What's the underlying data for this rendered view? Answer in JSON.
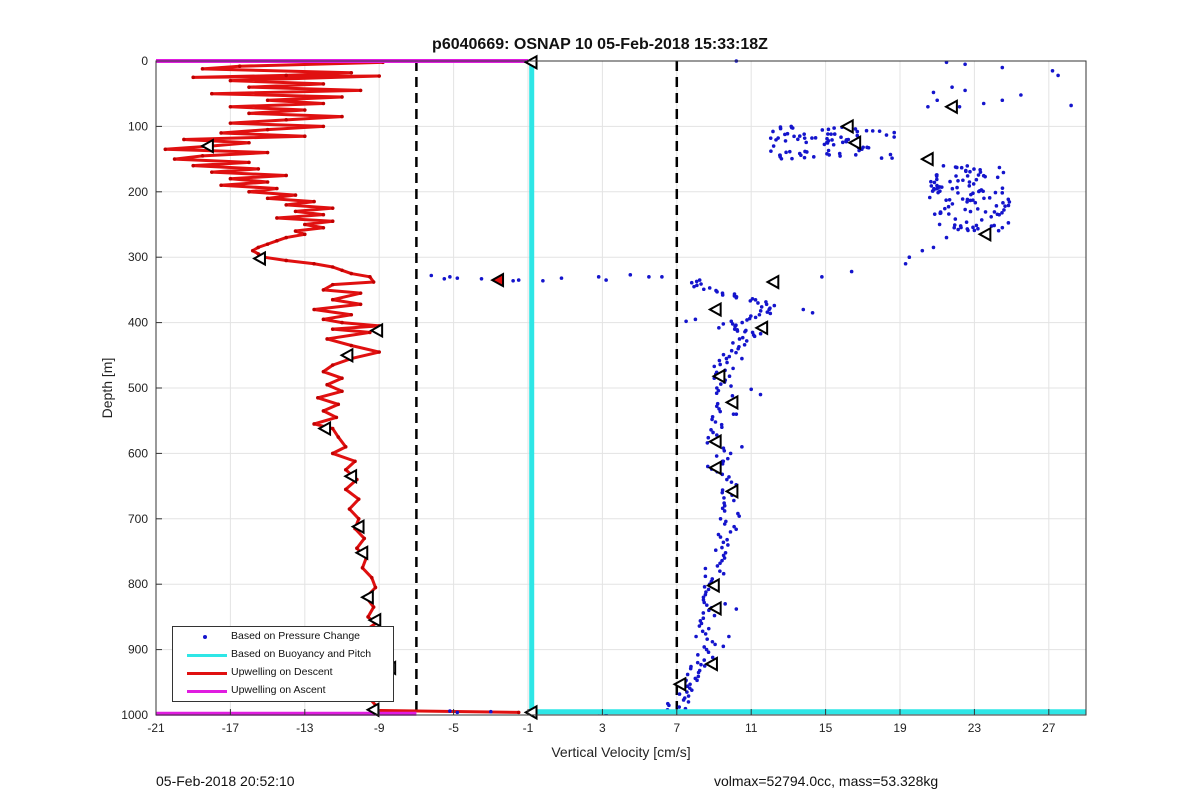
{
  "footer": {
    "timestamp": "05-Feb-2018 20:52:10",
    "info": "volmax=52794.0cc, mass=53.328kg"
  },
  "chart_data": {
    "type": "scatter",
    "title": "p6040669: OSNAP 10 05-Feb-2018 15:33:18Z",
    "xlabel": "Vertical Velocity [cm/s]",
    "ylabel": "Depth [m]",
    "xlim": [
      -21,
      29
    ],
    "ylim": [
      0,
      1000
    ],
    "y_reversed": true,
    "xticks": [
      -21,
      -17,
      -13,
      -9,
      -5,
      -1,
      3,
      7,
      11,
      15,
      19,
      23,
      27
    ],
    "yticks": [
      0,
      100,
      200,
      300,
      400,
      500,
      600,
      700,
      800,
      900,
      1000
    ],
    "grid": true,
    "legend_position": "bottom-left",
    "legend": [
      {
        "label": "Based on Pressure Change",
        "color": "#1414cc",
        "style": "dots"
      },
      {
        "label": "Based on Buoyancy and Pitch",
        "color": "#2ee6e6",
        "style": "line"
      },
      {
        "label": "Upwelling on Descent",
        "color": "#e01010",
        "style": "line"
      },
      {
        "label": "Upwelling on Ascent",
        "color": "#e01ce0",
        "style": "line"
      }
    ],
    "reference_lines": [
      {
        "x": -7,
        "style": "dashed",
        "color": "#000000"
      },
      {
        "x": 7,
        "style": "dashed",
        "color": "#000000"
      }
    ],
    "buoyancy_pitch_line": {
      "x": -0.8,
      "depth_range": [
        0,
        995
      ],
      "bottom_y": 995,
      "bottom_x_range": [
        -0.8,
        29
      ]
    },
    "ascent_line": {
      "top": {
        "y": 0,
        "x_range": [
          -21,
          -1
        ]
      },
      "bottom": {
        "y": 998,
        "x_range": [
          -21,
          -7
        ]
      }
    },
    "descent_profile": [
      [
        -8.8,
        2
      ],
      [
        -16.5,
        8
      ],
      [
        -18.5,
        12
      ],
      [
        -10.5,
        18
      ],
      [
        -14,
        22
      ],
      [
        -19,
        25
      ],
      [
        -9,
        23
      ],
      [
        -17,
        30
      ],
      [
        -12,
        35
      ],
      [
        -16,
        40
      ],
      [
        -10,
        45
      ],
      [
        -18,
        50
      ],
      [
        -11,
        55
      ],
      [
        -15,
        60
      ],
      [
        -12,
        65
      ],
      [
        -17,
        70
      ],
      [
        -13,
        75
      ],
      [
        -16,
        80
      ],
      [
        -11,
        85
      ],
      [
        -14,
        90
      ],
      [
        -17,
        95
      ],
      [
        -12,
        100
      ],
      [
        -15,
        105
      ],
      [
        -17.5,
        110
      ],
      [
        -13,
        115
      ],
      [
        -19.5,
        120
      ],
      [
        -16,
        125
      ],
      [
        -18,
        130
      ],
      [
        -20.5,
        135
      ],
      [
        -15,
        140
      ],
      [
        -18.5,
        145
      ],
      [
        -20,
        150
      ],
      [
        -16,
        155
      ],
      [
        -19,
        160
      ],
      [
        -15.5,
        165
      ],
      [
        -18,
        170
      ],
      [
        -14,
        175
      ],
      [
        -17,
        180
      ],
      [
        -15,
        185
      ],
      [
        -17.5,
        190
      ],
      [
        -14.5,
        195
      ],
      [
        -16,
        200
      ],
      [
        -13.5,
        205
      ],
      [
        -15,
        210
      ],
      [
        -12.5,
        215
      ],
      [
        -14,
        220
      ],
      [
        -11.5,
        225
      ],
      [
        -13.5,
        230
      ],
      [
        -12,
        235
      ],
      [
        -14.5,
        240
      ],
      [
        -11.5,
        245
      ],
      [
        -13,
        250
      ],
      [
        -12,
        255
      ],
      [
        -13.5,
        260
      ],
      [
        -13,
        265
      ],
      [
        -14,
        270
      ],
      [
        -14.5,
        275
      ],
      [
        -15,
        280
      ],
      [
        -15.5,
        285
      ],
      [
        -15.8,
        290
      ],
      [
        -15.5,
        295
      ],
      [
        -15.2,
        300
      ],
      [
        -14,
        305
      ],
      [
        -12.5,
        310
      ],
      [
        -11.5,
        315
      ],
      [
        -11,
        320
      ],
      [
        -10.5,
        325
      ],
      [
        -9.5,
        330
      ],
      [
        -9.3,
        338
      ],
      [
        -11.5,
        342
      ],
      [
        -12,
        350
      ],
      [
        -10,
        355
      ],
      [
        -11.5,
        365
      ],
      [
        -10,
        372
      ],
      [
        -12.5,
        380
      ],
      [
        -10.5,
        388
      ],
      [
        -12,
        395
      ],
      [
        -11,
        400
      ],
      [
        -9,
        405
      ],
      [
        -11.5,
        410
      ],
      [
        -9.5,
        415
      ],
      [
        -11.8,
        425
      ],
      [
        -10.5,
        435
      ],
      [
        -9,
        445
      ],
      [
        -10.5,
        455
      ],
      [
        -11.5,
        465
      ],
      [
        -12,
        475
      ],
      [
        -11,
        485
      ],
      [
        -11.8,
        495
      ],
      [
        -11,
        505
      ],
      [
        -12.3,
        515
      ],
      [
        -11.2,
        525
      ],
      [
        -12,
        535
      ],
      [
        -11.3,
        545
      ],
      [
        -12.5,
        555
      ],
      [
        -11.5,
        562
      ],
      [
        -11.2,
        575
      ],
      [
        -10.8,
        590
      ],
      [
        -11.5,
        600
      ],
      [
        -10.3,
        612
      ],
      [
        -10.8,
        625
      ],
      [
        -10.2,
        640
      ],
      [
        -10.8,
        655
      ],
      [
        -10.1,
        670
      ],
      [
        -10.6,
        685
      ],
      [
        -10.1,
        700
      ],
      [
        -10.3,
        715
      ],
      [
        -9.8,
        730
      ],
      [
        -10.2,
        745
      ],
      [
        -9.7,
        760
      ],
      [
        -9.9,
        775
      ],
      [
        -9.4,
        790
      ],
      [
        -9.2,
        805
      ],
      [
        -9.7,
        820
      ],
      [
        -9.3,
        835
      ],
      [
        -9.6,
        850
      ],
      [
        -9.2,
        860
      ],
      [
        -9.8,
        872
      ],
      [
        -9.5,
        885
      ],
      [
        -9.9,
        895
      ],
      [
        -9.3,
        905
      ],
      [
        -9.5,
        915
      ],
      [
        -8.8,
        925
      ],
      [
        -9.4,
        935
      ],
      [
        -9.1,
        945
      ],
      [
        -9.6,
        955
      ],
      [
        -9.3,
        965
      ],
      [
        -9.5,
        975
      ],
      [
        -9.2,
        985
      ],
      [
        -9.4,
        993
      ],
      [
        -1.5,
        996
      ]
    ],
    "descent_markers": [
      [
        -0.8,
        2
      ],
      [
        -18.2,
        130
      ],
      [
        -15.4,
        302
      ],
      [
        -9.1,
        412
      ],
      [
        -10.7,
        450
      ],
      [
        -11.9,
        562
      ],
      [
        -10.5,
        635
      ],
      [
        -10.1,
        712
      ],
      [
        -9.9,
        752
      ],
      [
        -9.6,
        820
      ],
      [
        -9.2,
        855
      ],
      [
        -9.9,
        893
      ],
      [
        -8.4,
        928
      ],
      [
        -9.3,
        992
      ],
      [
        -2.6,
        335
      ],
      [
        -0.8,
        996
      ]
    ],
    "pressure_points_upper": [
      [
        10.2,
        0
      ],
      [
        21.5,
        2
      ],
      [
        22.5,
        5
      ],
      [
        24.5,
        10
      ],
      [
        27.2,
        15
      ],
      [
        27.5,
        22
      ],
      [
        21.8,
        40
      ],
      [
        22.5,
        45
      ],
      [
        20.8,
        48
      ],
      [
        25.5,
        52
      ],
      [
        24.5,
        60
      ],
      [
        23.5,
        65
      ],
      [
        28.2,
        68
      ],
      [
        22.2,
        70
      ],
      [
        21,
        60
      ],
      [
        20.5,
        70
      ]
    ],
    "pressure_points_cluster1": {
      "x_center": 15.5,
      "x_spread": 3.5,
      "y_center": 125,
      "y_spread": 25,
      "count": 80
    },
    "pressure_points_cluster2": {
      "x_center": 22.8,
      "x_spread": 2.2,
      "y_center": 210,
      "y_spread": 50,
      "count": 110
    },
    "pressure_points_trail": [
      [
        21.5,
        270
      ],
      [
        20.8,
        285
      ],
      [
        19.5,
        300
      ],
      [
        19.3,
        310
      ],
      [
        20.2,
        290
      ]
    ],
    "pressure_points_band": [
      [
        -5.2,
        330
      ],
      [
        -4.8,
        332
      ],
      [
        -3.5,
        333
      ],
      [
        -2.8,
        335
      ],
      [
        -1.8,
        336
      ],
      [
        -1.5,
        335
      ],
      [
        0.8,
        332
      ],
      [
        2.8,
        330
      ],
      [
        3.2,
        335
      ],
      [
        4.5,
        327
      ],
      [
        5.5,
        330
      ],
      [
        6.2,
        330
      ],
      [
        -6.2,
        328
      ],
      [
        -5.5,
        333
      ],
      [
        -0.2,
        336
      ]
    ],
    "pressure_profile": {
      "segments": [
        [
          7.8,
          335
        ],
        [
          8.2,
          345
        ],
        [
          9.5,
          355
        ],
        [
          10.5,
          362
        ],
        [
          11.8,
          370
        ],
        [
          12.2,
          380
        ],
        [
          11.5,
          390
        ],
        [
          10.2,
          400
        ],
        [
          9.6,
          410
        ],
        [
          11.2,
          415
        ],
        [
          10.5,
          425
        ],
        [
          10.2,
          440
        ],
        [
          9.8,
          455
        ],
        [
          9.5,
          470
        ],
        [
          9.3,
          485
        ],
        [
          9.6,
          500
        ],
        [
          9.8,
          520
        ],
        [
          9.5,
          540
        ],
        [
          9.3,
          560
        ],
        [
          9.1,
          580
        ],
        [
          9.4,
          600
        ],
        [
          9.2,
          620
        ],
        [
          9.6,
          640
        ],
        [
          9.8,
          660
        ],
        [
          9.7,
          680
        ],
        [
          9.9,
          700
        ],
        [
          9.6,
          720
        ],
        [
          9.4,
          740
        ],
        [
          9.2,
          760
        ],
        [
          9.0,
          780
        ],
        [
          8.9,
          800
        ],
        [
          8.8,
          820
        ],
        [
          8.9,
          840
        ],
        [
          8.7,
          860
        ],
        [
          8.5,
          880
        ],
        [
          8.6,
          900
        ],
        [
          8.4,
          920
        ],
        [
          8.0,
          935
        ],
        [
          7.6,
          950
        ],
        [
          7.3,
          965
        ],
        [
          7.1,
          980
        ],
        [
          6.9,
          993
        ]
      ],
      "spread": 0.55,
      "scatter_extra": [
        [
          8.0,
          395
        ],
        [
          7.5,
          398
        ],
        [
          9.5,
          402
        ],
        [
          14.3,
          385
        ],
        [
          13.8,
          380
        ],
        [
          14.8,
          330
        ],
        [
          16.4,
          322
        ],
        [
          11.0,
          502
        ],
        [
          11.5,
          510
        ],
        [
          10.5,
          455
        ],
        [
          10.2,
          540
        ],
        [
          8.5,
          925
        ],
        [
          9.8,
          880
        ],
        [
          9.5,
          895
        ],
        [
          9.6,
          830
        ],
        [
          10.2,
          838
        ],
        [
          9.5,
          612
        ],
        [
          10.5,
          590
        ],
        [
          7.5,
          947
        ],
        [
          -3.0,
          995
        ],
        [
          -4.8,
          996
        ],
        [
          -5.2,
          994
        ],
        [
          2.8,
          996
        ],
        [
          3.2,
          998
        ],
        [
          5.8,
          995
        ],
        [
          6.5,
          992
        ]
      ]
    },
    "ascent_markers": [
      [
        21.8,
        70
      ],
      [
        16.2,
        100
      ],
      [
        16.6,
        125
      ],
      [
        20.5,
        150
      ],
      [
        23.6,
        265
      ],
      [
        12.2,
        338
      ],
      [
        9.1,
        380
      ],
      [
        11.6,
        408
      ],
      [
        9.3,
        482
      ],
      [
        10.0,
        522
      ],
      [
        9.1,
        582
      ],
      [
        9.1,
        622
      ],
      [
        10.0,
        658
      ],
      [
        9.0,
        802
      ],
      [
        9.1,
        837
      ],
      [
        8.9,
        922
      ],
      [
        7.2,
        953
      ]
    ]
  }
}
